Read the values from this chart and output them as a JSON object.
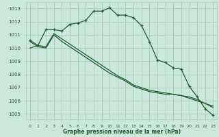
{
  "xlabel": "Graphe pression niveau de la mer (hPa)",
  "bg_color": "#cce8dd",
  "grid_color": "#aacfbf",
  "line_color": "#1a5c2a",
  "ylim": [
    1004.6,
    1013.5
  ],
  "xlim": [
    -0.5,
    23.5
  ],
  "yticks": [
    1005,
    1006,
    1007,
    1008,
    1009,
    1010,
    1011,
    1012,
    1013
  ],
  "xticks": [
    0,
    1,
    2,
    3,
    4,
    5,
    6,
    7,
    8,
    9,
    10,
    11,
    12,
    13,
    14,
    15,
    16,
    17,
    18,
    19,
    20,
    21,
    22,
    23
  ],
  "series": [
    {
      "x": [
        0,
        1,
        2,
        3,
        4,
        5,
        6,
        7,
        8,
        9,
        10,
        11,
        12,
        13,
        14,
        15,
        16,
        17,
        18,
        19,
        20,
        21,
        22,
        23
      ],
      "y": [
        1010.6,
        1010.2,
        1011.4,
        1011.4,
        1011.3,
        1011.8,
        1011.9,
        1012.1,
        1012.8,
        1012.8,
        1013.05,
        1012.5,
        1012.5,
        1012.3,
        1011.7,
        1010.5,
        1009.1,
        1008.9,
        1008.5,
        1008.4,
        1007.1,
        1006.3,
        1005.4,
        1004.9
      ],
      "marker": true
    },
    {
      "x": [
        0,
        1,
        2,
        3,
        4,
        5,
        6,
        7,
        8,
        9,
        10,
        11,
        12,
        13,
        14,
        15,
        16,
        17,
        18,
        19,
        20,
        21,
        22,
        23
      ],
      "y": [
        1010.0,
        1010.2,
        1010.1,
        1011.1,
        1010.7,
        1010.3,
        1009.9,
        1009.5,
        1009.1,
        1008.7,
        1008.3,
        1007.9,
        1007.6,
        1007.2,
        1007.0,
        1006.8,
        1006.7,
        1006.6,
        1006.5,
        1006.4,
        1006.2,
        1006.0,
        1005.8,
        1005.5
      ],
      "marker": false
    },
    {
      "x": [
        0,
        1,
        2,
        3,
        4,
        5,
        6,
        7,
        8,
        9,
        10,
        11,
        12,
        13,
        14,
        15,
        16,
        17,
        18,
        19,
        20,
        21,
        22,
        23
      ],
      "y": [
        1010.5,
        1010.1,
        1010.0,
        1011.0,
        1010.5,
        1010.1,
        1009.7,
        1009.3,
        1008.9,
        1008.5,
        1008.1,
        1007.8,
        1007.5,
        1007.1,
        1006.9,
        1006.7,
        1006.6,
        1006.5,
        1006.5,
        1006.4,
        1006.3,
        1006.1,
        1005.8,
        1005.6
      ],
      "marker": false
    }
  ]
}
